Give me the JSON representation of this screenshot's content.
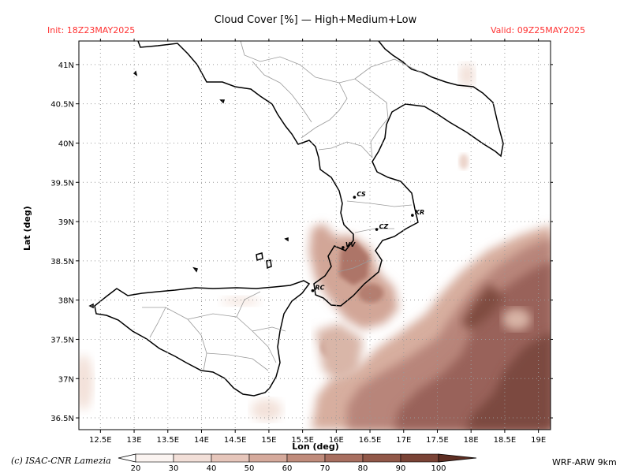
{
  "header": {
    "title": "Cloud Cover [%] — High+Medium+Low",
    "init": "Init: 18Z23MAY2025",
    "valid": "Valid: 09Z25MAY2025",
    "accent_color": "#ff3333"
  },
  "map": {
    "xlabel": "Lon (deg)",
    "ylabel": "Lat (deg)",
    "lon_range": [
      12.18,
      19.18
    ],
    "lat_range": [
      36.35,
      41.3
    ],
    "lon_ticks": [
      "12.5E",
      "13E",
      "13.5E",
      "14E",
      "14.5E",
      "15E",
      "15.5E",
      "16E",
      "16.5E",
      "17E",
      "17.5E",
      "18E",
      "18.5E",
      "19E"
    ],
    "lon_tick_values": [
      12.5,
      13,
      13.5,
      14,
      14.5,
      15,
      15.5,
      16,
      16.5,
      17,
      17.5,
      18,
      18.5,
      19
    ],
    "lat_ticks": [
      "36.5N",
      "37N",
      "37.5N",
      "38N",
      "38.5N",
      "39N",
      "39.5N",
      "40N",
      "40.5N",
      "41N"
    ],
    "lat_tick_values": [
      36.5,
      37,
      37.5,
      38,
      38.5,
      39,
      39.5,
      40,
      40.5,
      41
    ],
    "grid": true,
    "cities": [
      {
        "code": "CS",
        "lon": 16.27,
        "lat": 39.31
      },
      {
        "code": "KR",
        "lon": 17.13,
        "lat": 39.08
      },
      {
        "code": "CZ",
        "lon": 16.6,
        "lat": 38.9
      },
      {
        "code": "VV",
        "lon": 16.1,
        "lat": 38.67
      },
      {
        "code": "RC",
        "lon": 15.65,
        "lat": 38.12
      }
    ]
  },
  "colorbar": {
    "labels": [
      "20",
      "30",
      "40",
      "50",
      "60",
      "70",
      "80",
      "90",
      "100"
    ],
    "colors": [
      "#fbf4f1",
      "#f2dfd8",
      "#e6c6bb",
      "#d5aa9c",
      "#c08c7c",
      "#a86f60",
      "#915849",
      "#7a4336",
      "#5e2e23"
    ]
  },
  "footer": {
    "credit": "(c) ISAC-CNR Lamezia",
    "model": "WRF-ARW 9km"
  }
}
